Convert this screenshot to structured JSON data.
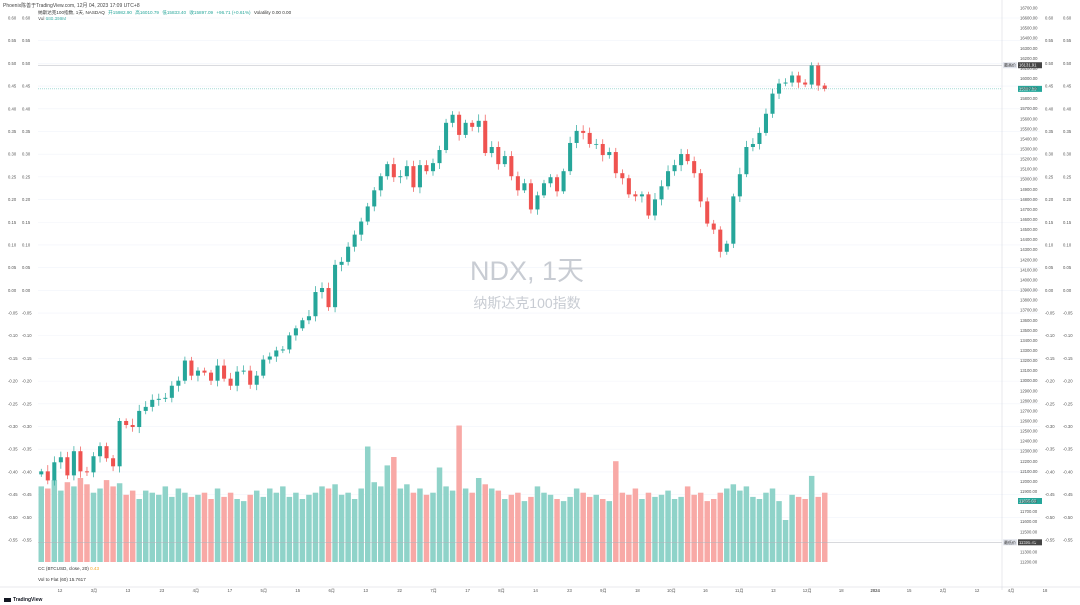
{
  "header": {
    "line": "Phoenix陈善于TradingView.com, 12月 04, 2023 17:09 UTC+8"
  },
  "symbol": {
    "name": "纳斯达克100指数, 1天, NASDAQ",
    "open": "开15982.90",
    "high": "高16010.79",
    "low": "低15833.40",
    "close": "收15897.09",
    "change": "+96.71 (+0.61%)",
    "extra": "Volatility 0.00 0.00",
    "vol_label": "Vol",
    "vol_value": "680.399M"
  },
  "indicators": {
    "corr_label": "CC (BTCUSD, close, 20)",
    "corr_value": "0.43",
    "vpvr_label": "Vol to Flat (60)",
    "vpvr_value": "15.7617"
  },
  "watermark": {
    "line1": "NDX, 1天",
    "line2": "纳斯达克100指数"
  },
  "brand": "TradingView",
  "colors": {
    "up": "#26a69a",
    "down": "#ef5350",
    "vol_up": "#8fd3c9",
    "vol_down": "#f8a9a6",
    "grid": "#f0f3fa",
    "axis_text": "#555555",
    "price_tag": "#26a69a",
    "line_tag": "#444444"
  },
  "price_tags": {
    "last": "15897.09",
    "high_line": "16131.91",
    "high_label": "最高价",
    "low_line": "11395.41",
    "low_label": "最低价",
    "vol_tag": "11895.09"
  },
  "chart_data": {
    "type": "candlestick",
    "price_axis": {
      "min": 11200,
      "max": 16700,
      "ticks": [
        16700,
        16600,
        16500,
        16400,
        16300,
        16200,
        16100,
        16000,
        15900,
        15800,
        15700,
        15600,
        15500,
        15400,
        15300,
        15200,
        15100,
        15000,
        14900,
        14800,
        14700,
        14600,
        14500,
        14400,
        14300,
        14200,
        14100,
        14000,
        13900,
        13800,
        13700,
        13600,
        13500,
        13400,
        13300,
        13200,
        13100,
        13000,
        12900,
        12800,
        12700,
        12600,
        12500,
        12400,
        12300,
        12200,
        12100,
        12000,
        11900,
        11800,
        11700,
        11600,
        11500,
        11400,
        11300,
        11200
      ]
    },
    "corr_axis": {
      "min": -0.55,
      "max": 0.6,
      "ticks": [
        "0.60",
        "0.55",
        "0.50",
        "0.45",
        "0.40",
        "0.35",
        "0.30",
        "0.25",
        "0.20",
        "0.15",
        "0.10",
        "0.05",
        "0.00",
        "-0.05",
        "-0.10",
        "-0.15",
        "-0.20",
        "-0.25",
        "-0.30",
        "-0.35",
        "-0.40",
        "-0.45",
        "-0.50",
        "-0.55"
      ]
    },
    "x_labels": [
      "12",
      "3月",
      "13",
      "23",
      "4月",
      "17",
      "5月",
      "15",
      "6月",
      "13",
      "22",
      "7月",
      "17",
      "8月",
      "14",
      "23",
      "9月",
      "18",
      "10月",
      "16",
      "11月",
      "13",
      "12月",
      "18",
      "2024",
      "15",
      "2月",
      "12",
      "4月",
      "18"
    ],
    "close_path": [
      12100,
      12010,
      12190,
      12240,
      12060,
      12300,
      12100,
      12090,
      12250,
      12350,
      12230,
      12150,
      12600,
      12560,
      12540,
      12700,
      12740,
      12810,
      12820,
      12830,
      12950,
      13000,
      13200,
      13050,
      13100,
      13080,
      13000,
      13150,
      13020,
      12950,
      13090,
      13100,
      12960,
      13050,
      13210,
      13240,
      13300,
      13310,
      13450,
      13520,
      13600,
      13640,
      13880,
      13920,
      13730,
      14150,
      14180,
      14330,
      14450,
      14580,
      14730,
      14890,
      15030,
      15150,
      15020,
      15030,
      15130,
      14920,
      15140,
      15080,
      15160,
      15290,
      15560,
      15640,
      15440,
      15560,
      15520,
      15580,
      15260,
      15320,
      15150,
      15230,
      15030,
      14890,
      14960,
      14700,
      14840,
      14960,
      15020,
      14880,
      15080,
      15360,
      15480,
      15460,
      15350,
      15350,
      15240,
      15270,
      15060,
      15010,
      14850,
      14830,
      14850,
      14640,
      14800,
      14930,
      15080,
      15140,
      15250,
      15180,
      15060,
      14780,
      14560,
      14500,
      14280,
      14360,
      14830,
      15050,
      15320,
      15350,
      15460,
      15650,
      15850,
      15950,
      15960,
      16030,
      15960,
      15940,
      16130,
      15930,
      15897
    ],
    "volume_path": [
      72,
      70,
      78,
      68,
      76,
      72,
      80,
      74,
      66,
      70,
      78,
      72,
      75,
      64,
      68,
      60,
      68,
      66,
      64,
      72,
      62,
      70,
      66,
      62,
      64,
      66,
      60,
      70,
      62,
      66,
      60,
      58,
      64,
      68,
      62,
      70,
      66,
      72,
      62,
      66,
      60,
      64,
      66,
      72,
      70,
      74,
      64,
      66,
      60,
      70,
      110,
      76,
      72,
      92,
      100,
      70,
      74,
      66,
      70,
      64,
      66,
      90,
      72,
      68,
      130,
      70,
      66,
      80,
      74,
      70,
      68,
      60,
      64,
      66,
      58,
      62,
      72,
      66,
      64,
      60,
      58,
      62,
      70,
      66,
      62,
      64,
      60,
      58,
      96,
      66,
      64,
      70,
      60,
      66,
      62,
      64,
      68,
      60,
      62,
      72,
      64,
      66,
      58,
      60,
      66,
      70,
      74,
      68,
      72,
      62,
      60,
      66,
      70,
      58,
      40,
      64,
      62,
      60,
      82,
      62,
      66
    ]
  }
}
